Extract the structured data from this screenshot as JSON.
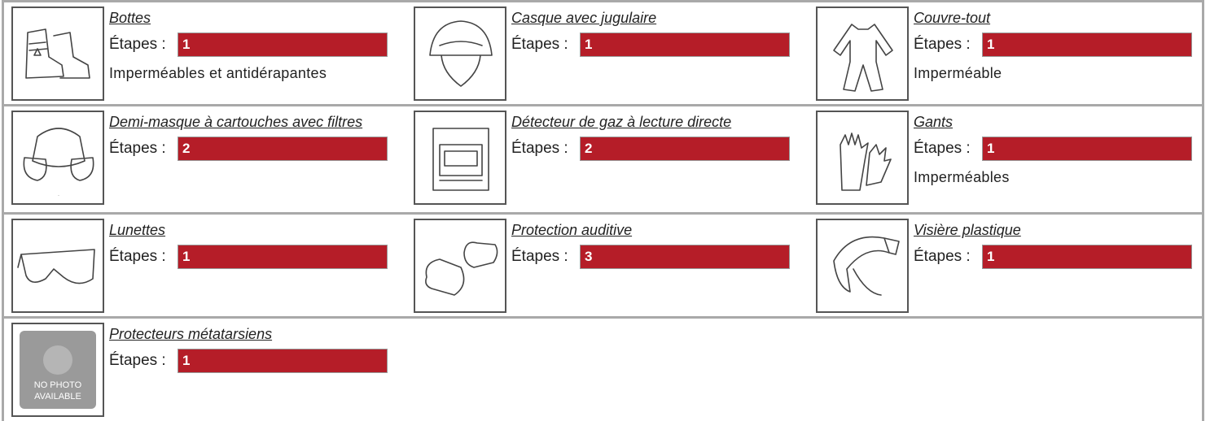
{
  "steps_label": "Étapes :",
  "no_photo_label": [
    "NO PHOTO",
    "AVAILABLE"
  ],
  "items": [
    {
      "name": "Bottes",
      "steps": 1,
      "note": "Imperméables et antidérapantes",
      "icon": "boots"
    },
    {
      "name": "Casque avec jugulaire",
      "steps": 1,
      "icon": "helmet"
    },
    {
      "name": "Couvre-tout",
      "steps": 1,
      "note": "Imperméable",
      "icon": "coverall"
    },
    {
      "name": "Demi-masque à cartouches avec filtres",
      "steps": 2,
      "icon": "mask"
    },
    {
      "name": "Détecteur de gaz à lecture directe",
      "steps": 2,
      "icon": "detector"
    },
    {
      "name": "Gants",
      "steps": 1,
      "note": "Imperméables",
      "icon": "gloves"
    },
    {
      "name": "Lunettes",
      "steps": 1,
      "icon": "glasses"
    },
    {
      "name": "Protection auditive",
      "steps": 3,
      "icon": "earplugs"
    },
    {
      "name": "Visière plastique",
      "steps": 1,
      "icon": "visor"
    },
    {
      "name": "Protecteurs métatarsiens",
      "steps": 1,
      "icon": "none"
    }
  ]
}
